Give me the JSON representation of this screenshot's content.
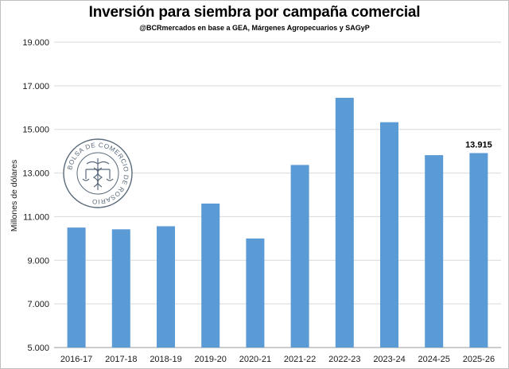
{
  "header": {
    "title": "Inversión para siembra por campaña comercial",
    "subtitle": "@BCRmercados en base a GEA, Márgenes Agropecuarios y SAGyP"
  },
  "chart_data": {
    "type": "bar",
    "categories": [
      "2016-17",
      "2017-18",
      "2018-19",
      "2019-20",
      "2020-21",
      "2021-22",
      "2022-23",
      "2023-24",
      "2024-25",
      "2025-26"
    ],
    "values": [
      10500,
      10420,
      10560,
      11600,
      10000,
      13370,
      16450,
      15330,
      13820,
      13915
    ],
    "data_labels": [
      {
        "index": 9,
        "text": "13.915"
      }
    ],
    "ylabel": "Millones de dólares",
    "xlabel": "",
    "ylim": [
      5000,
      19000
    ],
    "yticks": [
      5000,
      7000,
      9000,
      11000,
      13000,
      15000,
      17000,
      19000
    ],
    "ytick_labels": [
      "5.000",
      "7.000",
      "9.000",
      "11.000",
      "13.000",
      "15.000",
      "17.000",
      "19.000"
    ],
    "grid": true,
    "bar_color": "#5b9bd5"
  },
  "watermark": {
    "text": "BOLSA DE COMERCIO DE ROSARIO"
  }
}
